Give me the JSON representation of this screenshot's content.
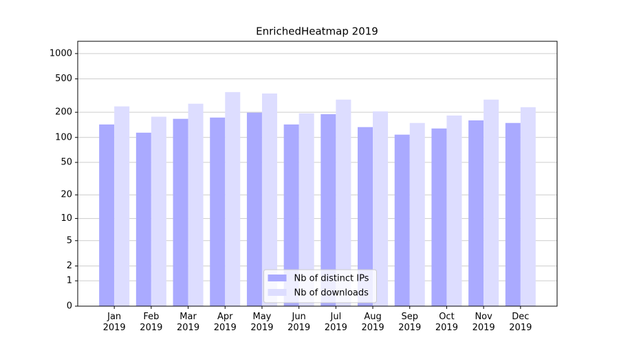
{
  "chart_data": {
    "type": "bar",
    "title": "EnrichedHeatmap 2019",
    "scale": "log1p",
    "categories": [
      "Jan\n2019",
      "Feb\n2019",
      "Mar\n2019",
      "Apr\n2019",
      "May\n2019",
      "Jun\n2019",
      "Jul\n2019",
      "Aug\n2019",
      "Sep\n2019",
      "Oct\n2019",
      "Nov\n2019",
      "Dec\n2019"
    ],
    "series": [
      {
        "name": "Nb of distinct IPs",
        "color": "#aaaaff",
        "values": [
          143,
          114,
          167,
          173,
          198,
          143,
          190,
          133,
          108,
          128,
          160,
          149
        ]
      },
      {
        "name": "Nb of downloads",
        "color": "#ddddff",
        "values": [
          235,
          177,
          253,
          348,
          335,
          194,
          283,
          205,
          149,
          183,
          283,
          230
        ]
      }
    ],
    "ylim": [
      0,
      1400
    ],
    "yticks": [
      0,
      1,
      2,
      5,
      10,
      20,
      50,
      100,
      200,
      500,
      1000
    ],
    "grid": true,
    "legend": "lower center"
  }
}
